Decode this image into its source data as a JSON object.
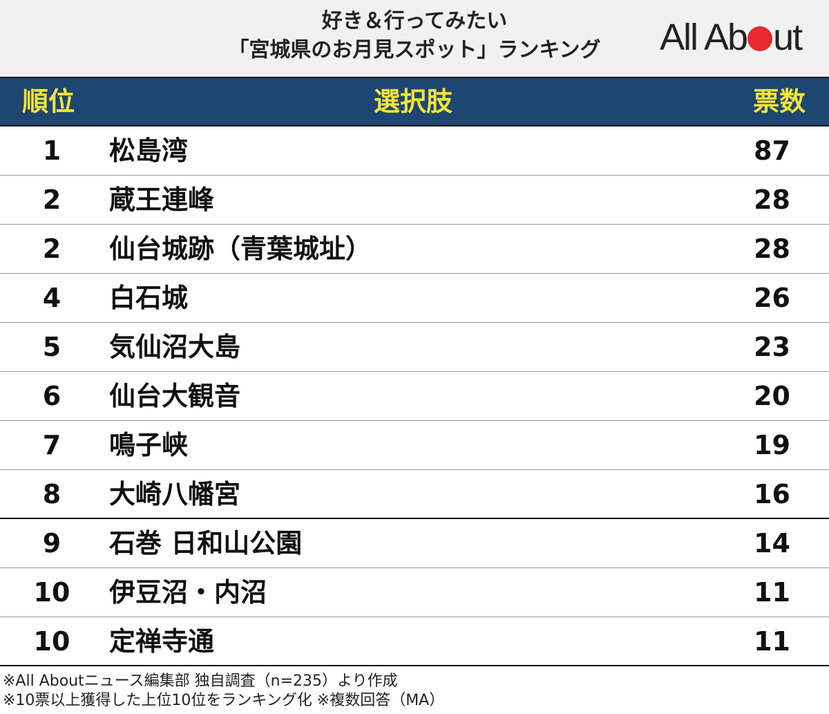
{
  "header": {
    "title_line1": "好き＆行ってみたい",
    "title_line2": "「宮城県のお月見スポット」ランキング",
    "logo_left": "All Ab",
    "logo_right": "ut"
  },
  "columns": {
    "rank": "順位",
    "choice": "選択肢",
    "votes": "票数"
  },
  "chart_data": {
    "type": "table",
    "headers": [
      "順位",
      "選択肢",
      "票数"
    ],
    "rows": [
      {
        "rank": "1",
        "name": "松島湾",
        "votes": "87"
      },
      {
        "rank": "2",
        "name": "蔵王連峰",
        "votes": "28"
      },
      {
        "rank": "2",
        "name": "仙台城跡（青葉城址）",
        "votes": "28"
      },
      {
        "rank": "4",
        "name": "白石城",
        "votes": "26"
      },
      {
        "rank": "5",
        "name": "気仙沼大島",
        "votes": "23"
      },
      {
        "rank": "6",
        "name": "仙台大観音",
        "votes": "20"
      },
      {
        "rank": "7",
        "name": "鳴子峡",
        "votes": "19"
      },
      {
        "rank": "8",
        "name": "大崎八幡宮",
        "votes": "16"
      },
      {
        "rank": "9",
        "name": "石巻 日和山公園",
        "votes": "14"
      },
      {
        "rank": "10",
        "name": "伊豆沼・内沼",
        "votes": "11"
      },
      {
        "rank": "10",
        "name": "定禅寺通",
        "votes": "11"
      }
    ]
  },
  "notes": {
    "line1": "※All Aboutニュース編集部 独自調査（n=235）より作成",
    "line2": "※10票以上獲得した上位10位をランキング化 ※複数回答（MA）"
  },
  "colors": {
    "header_band": "#1d4671",
    "header_text": "#f3e23a",
    "logo_dot": "#e8292f"
  }
}
